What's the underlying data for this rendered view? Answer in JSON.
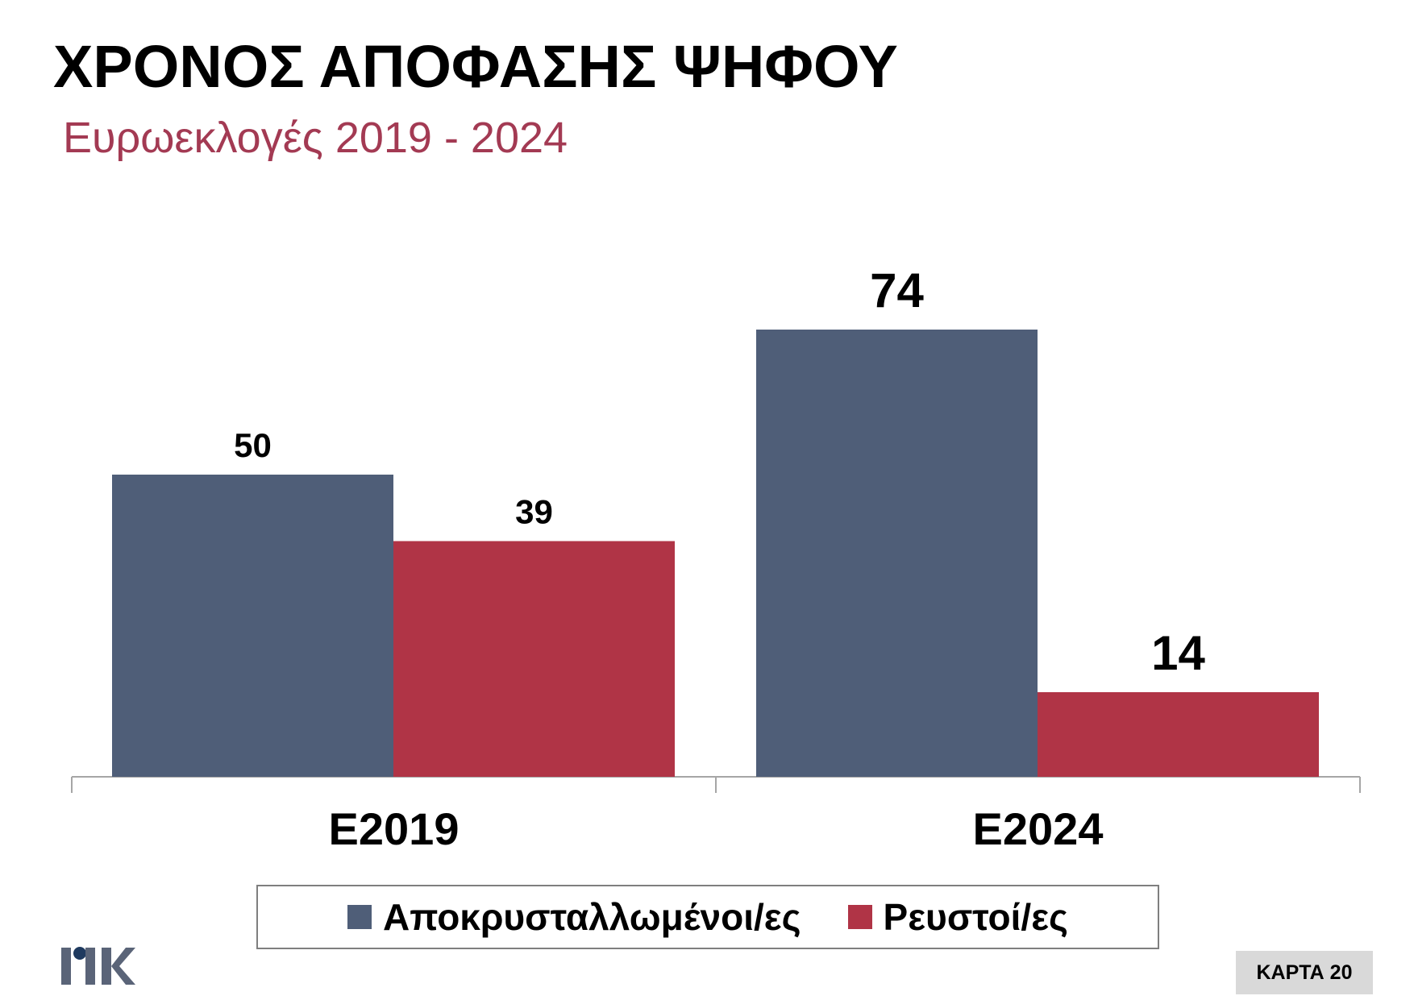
{
  "title": "ΧΡΟΝΟΣ ΑΠΟΦΑΣΗΣ ΨΗΦΟΥ",
  "subtitle": "Ευρωεκλογές 2019 - 2024",
  "badge": "ΚΑΡΤΑ 20",
  "logo_text": "PIK",
  "colors": {
    "series1": "#4f5e78",
    "series2": "#b03446",
    "subtitle": "#a33a53",
    "axis": "#a6a6a6"
  },
  "chart_data": {
    "type": "bar",
    "categories": [
      "E2019",
      "E2024"
    ],
    "series": [
      {
        "name": "Αποκρυσταλλωμένοι/ες",
        "values": [
          50,
          74
        ],
        "color": "#4f5e78"
      },
      {
        "name": "Ρευστοί/ες",
        "values": [
          39,
          14
        ],
        "color": "#b03446"
      }
    ],
    "title": "ΧΡΟΝΟΣ ΑΠΟΦΑΣΗΣ ΨΗΦΟΥ",
    "subtitle": "Ευρωεκλογές 2019 - 2024",
    "data_labels": true,
    "grid": false,
    "legend_position": "bottom"
  }
}
